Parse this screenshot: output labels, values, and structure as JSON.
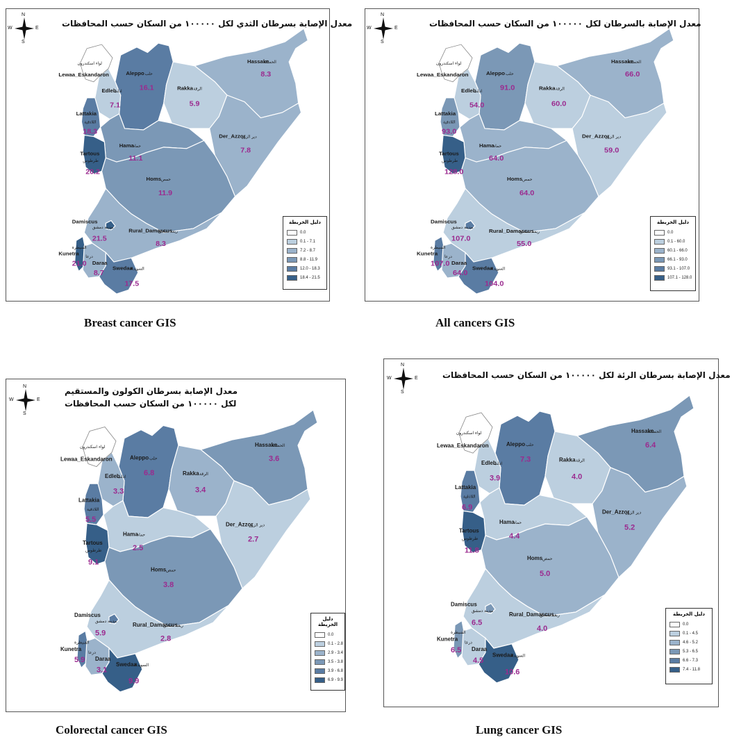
{
  "legend_title": "دليل الخريطة",
  "maps": [
    {
      "id": "breast",
      "caption": "Breast cancer GIS",
      "title_lines": [
        "معدل الإصابة بسرطان الثدي لكل ١٠٠٠٠٠ من السكان حسب المحافظات"
      ],
      "legend": [
        "0.0",
        "0.1 - 7.1",
        "7.2 - 8.7",
        "8.8 - 11.9",
        "12.0 - 18.3",
        "18.4 - 21.5"
      ],
      "regions": {
        "Hassake": {
          "en": "Hassake",
          "ar": "الحسكة",
          "value": "8.3",
          "cls": 2
        },
        "Aleppo": {
          "en": "Aleppo",
          "ar": "حلب",
          "value": "16.1",
          "cls": 4
        },
        "Rakka": {
          "en": "Rakka",
          "ar": "الرقة",
          "value": "5.9",
          "cls": 1
        },
        "Edleb": {
          "en": "Edleb",
          "ar": "ادلب",
          "value": "7.1",
          "cls": 1
        },
        "Lattakia": {
          "en": "Lattakia",
          "ar": "اللاذقية",
          "value": "18.3",
          "cls": 4
        },
        "Der_Azzor": {
          "en": "Der_Azzor",
          "ar": "دير الزور",
          "value": "7.8",
          "cls": 2
        },
        "Hama": {
          "en": "Hama",
          "ar": "حماه",
          "value": "11.1",
          "cls": 3
        },
        "Tartous": {
          "en": "Tartous",
          "ar": "طرطوس",
          "value": "20.2",
          "cls": 5
        },
        "Homs": {
          "en": "Homs",
          "ar": "حمص",
          "value": "11.9",
          "cls": 3
        },
        "Damascus": {
          "en": "Damiscus",
          "ar": "مدينة دمشق",
          "value": "21.5",
          "cls": 5
        },
        "Rural_Damascus": {
          "en": "Rural_Damascus",
          "ar": "ريف دمشق",
          "value": "8.3",
          "cls": 2
        },
        "Kunetra": {
          "en": "Kunetra",
          "ar": "القنيطرة",
          "value": "21.0",
          "cls": 5
        },
        "Daraa": {
          "en": "Daraa",
          "ar": "درعا",
          "value": "8.7",
          "cls": 2
        },
        "Swedaa": {
          "en": "Swedaa",
          "ar": "السويداء",
          "value": "17.5",
          "cls": 4
        },
        "Lewaa": {
          "en": "Lewaa_Eskandaron",
          "ar": "لواء اسكندرون",
          "value": "",
          "cls": 0
        }
      }
    },
    {
      "id": "all",
      "caption": "All cancers GIS",
      "title_lines": [
        "معدل الإصابة بالسرطان لكل ١٠٠٠٠٠ من السكان حسب المحافظات"
      ],
      "legend": [
        "0.0",
        "0.1 - 60.0",
        "60.1 - 66.0",
        "66.1 - 93.0",
        "93.1 - 107.0",
        "107.1 - 128.0"
      ],
      "regions": {
        "Hassake": {
          "en": "Hassake",
          "ar": "الحسكة",
          "value": "66.0",
          "cls": 2
        },
        "Aleppo": {
          "en": "Aleppo",
          "ar": "حلب",
          "value": "91.0",
          "cls": 3
        },
        "Rakka": {
          "en": "Rakka",
          "ar": "الرقة",
          "value": "60.0",
          "cls": 1
        },
        "Edleb": {
          "en": "Edleb",
          "ar": "ادلب",
          "value": "54.0",
          "cls": 1
        },
        "Lattakia": {
          "en": "Lattakia",
          "ar": "اللاذقية",
          "value": "93.0",
          "cls": 3
        },
        "Der_Azzor": {
          "en": "Der_Azzor",
          "ar": "دير الزور",
          "value": "59.0",
          "cls": 1
        },
        "Hama": {
          "en": "Hama",
          "ar": "حماه",
          "value": "64.0",
          "cls": 2
        },
        "Tartous": {
          "en": "Tartous",
          "ar": "طرطوس",
          "value": "128.0",
          "cls": 5
        },
        "Homs": {
          "en": "Homs",
          "ar": "حمص",
          "value": "64.0",
          "cls": 2
        },
        "Damascus": {
          "en": "Damiscus",
          "ar": "مدينة دمشق",
          "value": "107.0",
          "cls": 4
        },
        "Rural_Damascus": {
          "en": "Rural_Damascus",
          "ar": "ريف دمشق",
          "value": "55.0",
          "cls": 1
        },
        "Kunetra": {
          "en": "Kunetra",
          "ar": "القنيطرة",
          "value": "107.0",
          "cls": 4
        },
        "Daraa": {
          "en": "Daraa",
          "ar": "درعا",
          "value": "64.0",
          "cls": 2
        },
        "Swedaa": {
          "en": "Swedaa",
          "ar": "السويداء",
          "value": "104.0",
          "cls": 4
        },
        "Lewaa": {
          "en": "Lewaa_Eskandaron",
          "ar": "لواء اسكندرون",
          "value": "",
          "cls": 0
        }
      }
    },
    {
      "id": "colorectal",
      "caption": "Colorectal cancer GIS",
      "title_lines": [
        "معدل الإصابة بسرطان الكولون والمستقيم",
        "لكل ١٠٠٠٠٠ من السكان حسب المحافظات"
      ],
      "legend": [
        "0.0",
        "0.1 - 2.8",
        "2.9 - 3.4",
        "3.5 - 3.8",
        "3.9 - 6.8",
        "6.9 - 9.9"
      ],
      "regions": {
        "Hassake": {
          "en": "Hassake",
          "ar": "الحسكة",
          "value": "3.6",
          "cls": 3
        },
        "Aleppo": {
          "en": "Aleppo",
          "ar": "حلب",
          "value": "6.8",
          "cls": 4
        },
        "Rakka": {
          "en": "Rakka",
          "ar": "الرقة",
          "value": "3.4",
          "cls": 2
        },
        "Edleb": {
          "en": "Edleb",
          "ar": "ادلب",
          "value": "3.3",
          "cls": 2
        },
        "Lattakia": {
          "en": "Lattakia",
          "ar": "اللاذقية",
          "value": "5.5",
          "cls": 4
        },
        "Der_Azzor": {
          "en": "Der_Azzor",
          "ar": "دير الزور",
          "value": "2.7",
          "cls": 1
        },
        "Hama": {
          "en": "Hama",
          "ar": "حماه",
          "value": "2.5",
          "cls": 1
        },
        "Tartous": {
          "en": "Tartous",
          "ar": "طرطوس",
          "value": "9.1",
          "cls": 5
        },
        "Homs": {
          "en": "Homs",
          "ar": "حمص",
          "value": "3.8",
          "cls": 3
        },
        "Damascus": {
          "en": "Damiscus",
          "ar": "مدينة دمشق",
          "value": "5.9",
          "cls": 4
        },
        "Rural_Damascus": {
          "en": "Rural_Damascus",
          "ar": "ريف دمشق",
          "value": "2.8",
          "cls": 1
        },
        "Kunetra": {
          "en": "Kunetra",
          "ar": "القنيطرة",
          "value": "5.9",
          "cls": 4
        },
        "Daraa": {
          "en": "Daraa",
          "ar": "درعا",
          "value": "3.1",
          "cls": 2
        },
        "Swedaa": {
          "en": "Swedaa",
          "ar": "السويداء",
          "value": "9.9",
          "cls": 5
        },
        "Lewaa": {
          "en": "Lewaa_Eskandaron",
          "ar": "لواء اسكندرون",
          "value": "",
          "cls": 0
        }
      }
    },
    {
      "id": "lung",
      "caption": "Lung cancer GIS",
      "title_lines": [
        "معدل الإصابة بسرطان الرئة لكل ١٠٠٠٠٠ من السكان حسب المحافظات"
      ],
      "legend": [
        "0.0",
        "0.1 - 4.5",
        "4.6 - 5.2",
        "5.3 - 6.5",
        "6.6 - 7.3",
        "7.4 - 11.8"
      ],
      "regions": {
        "Hassake": {
          "en": "Hassake",
          "ar": "الحسكة",
          "value": "6.4",
          "cls": 3
        },
        "Aleppo": {
          "en": "Aleppo",
          "ar": "حلب",
          "value": "7.3",
          "cls": 4
        },
        "Rakka": {
          "en": "Rakka",
          "ar": "الرقة",
          "value": "4.0",
          "cls": 1
        },
        "Edleb": {
          "en": "Edleb",
          "ar": "ادلب",
          "value": "3.9",
          "cls": 1
        },
        "Lattakia": {
          "en": "Lattakia",
          "ar": "اللاذقية",
          "value": "6.9",
          "cls": 4
        },
        "Der_Azzor": {
          "en": "Der_Azzor",
          "ar": "دير الزور",
          "value": "5.2",
          "cls": 2
        },
        "Hama": {
          "en": "Hama",
          "ar": "حماه",
          "value": "4.4",
          "cls": 1
        },
        "Tartous": {
          "en": "Tartous",
          "ar": "طرطوس",
          "value": "11.8",
          "cls": 5
        },
        "Homs": {
          "en": "Homs",
          "ar": "حمص",
          "value": "5.0",
          "cls": 2
        },
        "Damascus": {
          "en": "Damiscus",
          "ar": "مدينة دمشق",
          "value": "6.5",
          "cls": 3
        },
        "Rural_Damascus": {
          "en": "Rural_Damascus",
          "ar": "ريف دمشق",
          "value": "4.0",
          "cls": 1
        },
        "Kunetra": {
          "en": "Kunetra",
          "ar": "القنيطرة",
          "value": "6.5",
          "cls": 3
        },
        "Daraa": {
          "en": "Daraa",
          "ar": "درعا",
          "value": "4.5",
          "cls": 1
        },
        "Swedaa": {
          "en": "Swedaa",
          "ar": "السويداء",
          "value": "10.6",
          "cls": 5
        },
        "Lewaa": {
          "en": "Lewaa_Eskandaron",
          "ar": "لواء اسكندرون",
          "value": "",
          "cls": 0
        }
      }
    }
  ],
  "colors": [
    "#ffffff",
    "#bccfdf",
    "#9bb3cb",
    "#7b98b6",
    "#5a7ca3",
    "#365f88"
  ],
  "compass": {
    "n": "N",
    "s": "S",
    "e": "E",
    "w": "W"
  }
}
